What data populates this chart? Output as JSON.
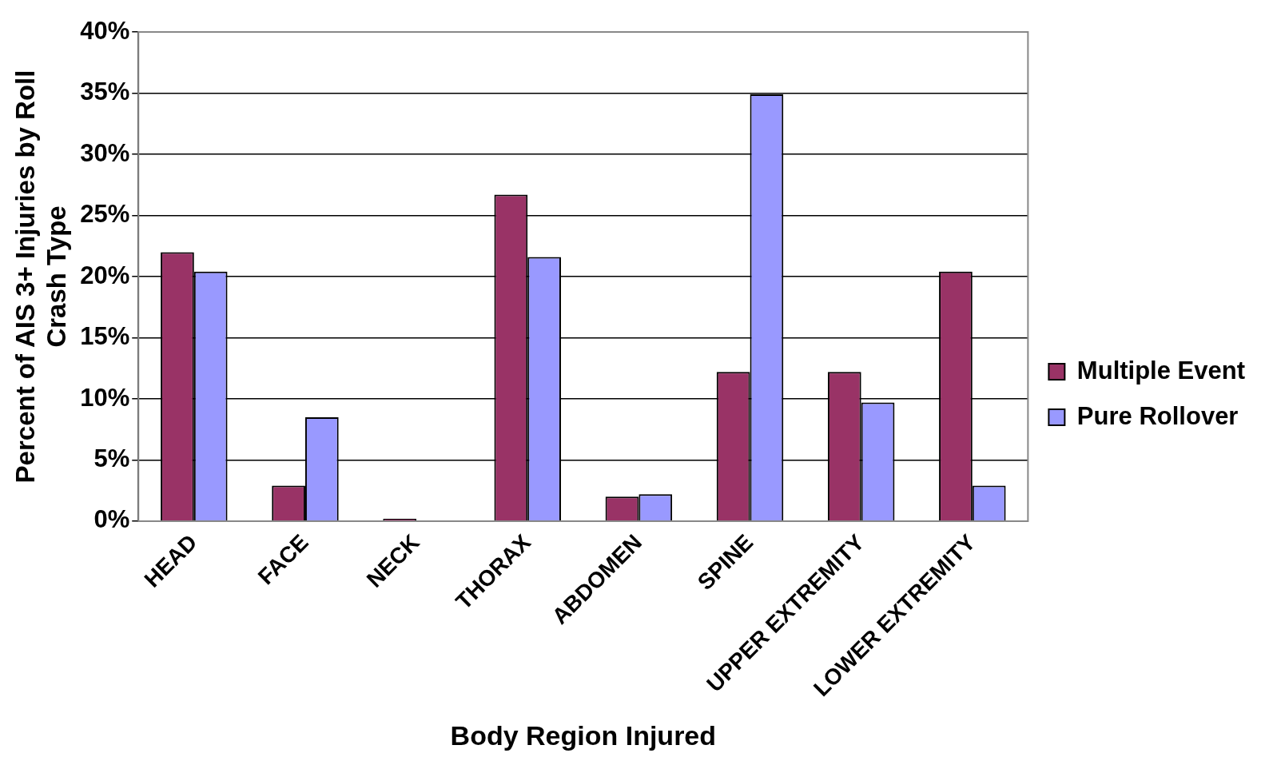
{
  "chart_data": {
    "type": "bar",
    "xlabel": "Body Region Injured",
    "ylabel": "Percent of AIS 3+ Injuries by Roll\nCrash Type",
    "categories": [
      "HEAD",
      "FACE",
      "NECK",
      "THORAX",
      "ABDOMEN",
      "SPINE",
      "UPPER EXTREMITY",
      "LOWER EXTREMITY"
    ],
    "series": [
      {
        "name": "Multiple Event",
        "color": "#993366",
        "values": [
          22,
          2.9,
          0.2,
          26.7,
          2,
          12.2,
          12.2,
          20.4
        ]
      },
      {
        "name": "Pure Rollover",
        "color": "#9999ff",
        "values": [
          20.4,
          8.5,
          null,
          21.6,
          2.2,
          34.9,
          9.7,
          2.9
        ]
      }
    ],
    "ylim": [
      0,
      40
    ],
    "yticks": [
      {
        "value": 0,
        "label": "0%"
      },
      {
        "value": 5,
        "label": "5%"
      },
      {
        "value": 10,
        "label": "10%"
      },
      {
        "value": 15,
        "label": "15%"
      },
      {
        "value": 20,
        "label": "20%"
      },
      {
        "value": 25,
        "label": "25%"
      },
      {
        "value": 30,
        "label": "30%"
      },
      {
        "value": 35,
        "label": "35%"
      },
      {
        "value": 40,
        "label": "40%"
      }
    ],
    "grid": "y",
    "legend": "right"
  }
}
